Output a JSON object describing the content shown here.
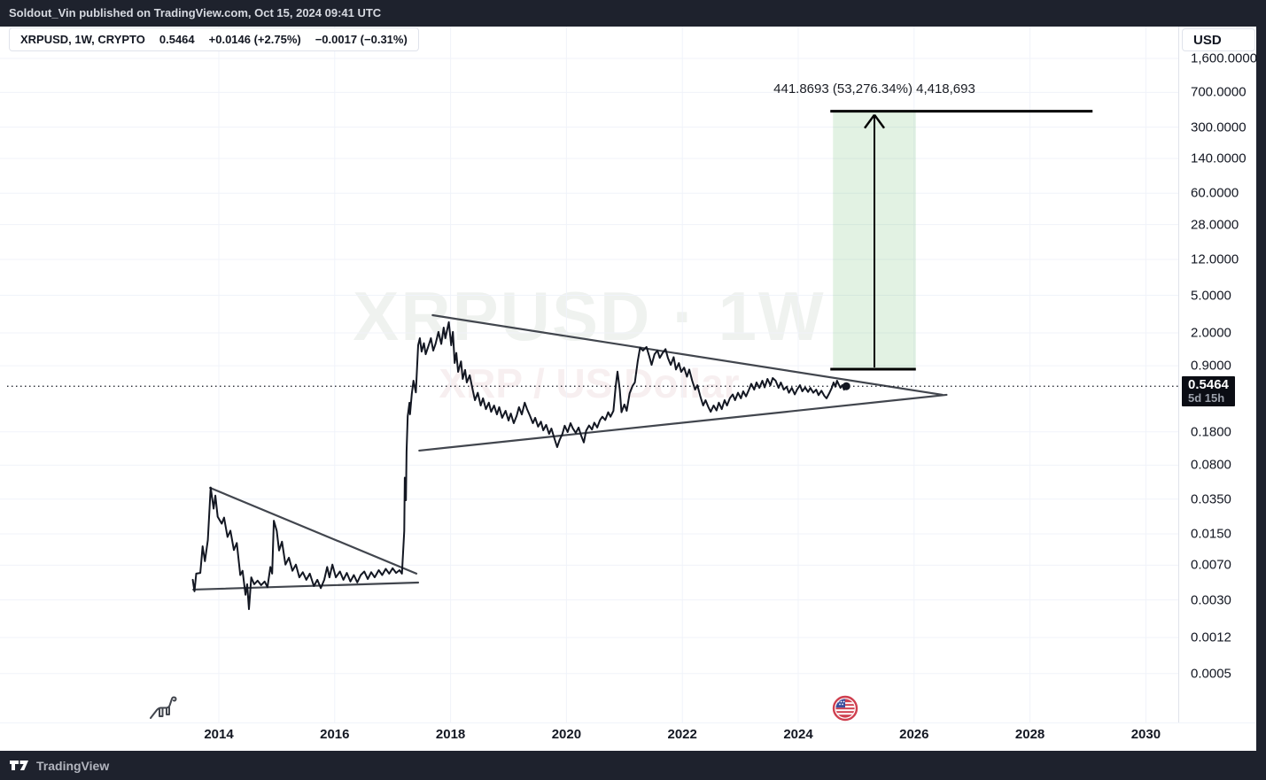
{
  "header": {
    "publish_line": "Soldout_Vin published on TradingView.com, Oct 15, 2024 09:41 UTC"
  },
  "legend": {
    "symbol": "XRPUSD, 1W, CRYPTO",
    "last": "0.5464",
    "change_1": "+0.0146 (+2.75%)",
    "change_2": "−0.0017 (−0.31%)"
  },
  "watermark": {
    "line1": "XRPUSD · 1W",
    "line2": "XRP / US Dollar"
  },
  "price_scale": {
    "currency_button": "USD",
    "price_badge": {
      "price": "0.5464",
      "countdown": "5d 15h"
    }
  },
  "footer": {
    "brand": "TradingView"
  },
  "icons": {
    "dinosaur": "dinosaur-icon",
    "us_flag": "us-flag-icon",
    "tv_logo": "tradingview-logo-icon",
    "up_arrow": "up-arrow-icon"
  },
  "colors": {
    "frame_dark": "#1e222d",
    "chart_bg": "#ffffff",
    "grid": "#f0f3fa",
    "series": "#131722",
    "trendline": "#42464e",
    "position_line": "#000000",
    "position_fill": "rgba(76,175,80,0.16)",
    "badge_bg": "#0b0d14",
    "flag_red": "#cf3f4f",
    "flag_blue": "#3b4f9e"
  },
  "chart_data": {
    "type": "line",
    "symbol": "XRPUSD",
    "timeframe": "1W",
    "exchange": "CRYPTO",
    "scale": "log",
    "current_price": 0.5464,
    "price_line": 0.5464,
    "x_axis": {
      "ticks": [
        2014,
        2016,
        2018,
        2020,
        2022,
        2024,
        2026,
        2028,
        2030
      ],
      "range": [
        2013.3,
        2031.5
      ]
    },
    "y_axis": {
      "unit": "USD",
      "ticks": [
        {
          "label": "1,600.0000",
          "value": 1600
        },
        {
          "label": "700.0000",
          "value": 700
        },
        {
          "label": "300.0000",
          "value": 300
        },
        {
          "label": "140.0000",
          "value": 140
        },
        {
          "label": "60.0000",
          "value": 60
        },
        {
          "label": "28.0000",
          "value": 28
        },
        {
          "label": "12.0000",
          "value": 12
        },
        {
          "label": "5.0000",
          "value": 5
        },
        {
          "label": "2.0000",
          "value": 2
        },
        {
          "label": "0.9000",
          "value": 0.9
        },
        {
          "label": "0.1800",
          "value": 0.18
        },
        {
          "label": "0.0800",
          "value": 0.08
        },
        {
          "label": "0.0350",
          "value": 0.035
        },
        {
          "label": "0.0150",
          "value": 0.015
        },
        {
          "label": "0.0070",
          "value": 0.007
        },
        {
          "label": "0.0030",
          "value": 0.003
        },
        {
          "label": "0.0012",
          "value": 0.0012
        },
        {
          "label": "0.0005",
          "value": 0.0005
        }
      ]
    },
    "trendlines": [
      {
        "name": "triangle-1-upper",
        "x1": 2013.85,
        "p1": 0.046,
        "x2": 2017.41,
        "p2": 0.0057
      },
      {
        "name": "triangle-1-lower",
        "x1": 2013.56,
        "p1": 0.00386,
        "x2": 2017.44,
        "p2": 0.00458
      },
      {
        "name": "triangle-2-upper",
        "x1": 2017.69,
        "p1": 3.08,
        "x2": 2026.49,
        "p2": 0.443
      },
      {
        "name": "triangle-2-lower",
        "x1": 2017.46,
        "p1": 0.114,
        "x2": 2026.56,
        "p2": 0.443
      }
    ],
    "long_position": {
      "x1": 2024.6,
      "x2": 2026.03,
      "entry": 0.8279,
      "target": 441.8693,
      "target_line_x2": 2029.08,
      "label": "441.8693 (53,276.34%) 4,418,693"
    },
    "series": [
      {
        "name": "XRPUSD weekly close",
        "points": [
          [
            2013.55,
            0.0049
          ],
          [
            2013.58,
            0.0037
          ],
          [
            2013.61,
            0.0057
          ],
          [
            2013.68,
            0.0058
          ],
          [
            2013.72,
            0.0111
          ],
          [
            2013.76,
            0.0077
          ],
          [
            2013.81,
            0.0129
          ],
          [
            2013.86,
            0.0464
          ],
          [
            2013.91,
            0.0277
          ],
          [
            2013.94,
            0.0381
          ],
          [
            2013.98,
            0.0228
          ],
          [
            2014.05,
            0.0192
          ],
          [
            2014.09,
            0.0223
          ],
          [
            2014.15,
            0.0139
          ],
          [
            2014.2,
            0.0162
          ],
          [
            2014.26,
            0.0101
          ],
          [
            2014.31,
            0.012
          ],
          [
            2014.37,
            0.0055
          ],
          [
            2014.41,
            0.0061
          ],
          [
            2014.46,
            0.0034
          ],
          [
            2014.49,
            0.0044
          ],
          [
            2014.52,
            0.0024
          ],
          [
            2014.56,
            0.0052
          ],
          [
            2014.61,
            0.0044
          ],
          [
            2014.67,
            0.0048
          ],
          [
            2014.73,
            0.0043
          ],
          [
            2014.79,
            0.0047
          ],
          [
            2014.84,
            0.0041
          ],
          [
            2014.89,
            0.0067
          ],
          [
            2014.92,
            0.0057
          ],
          [
            2014.95,
            0.0207
          ],
          [
            2015.0,
            0.0161
          ],
          [
            2015.04,
            0.01
          ],
          [
            2015.09,
            0.0124
          ],
          [
            2015.15,
            0.0071
          ],
          [
            2015.21,
            0.0084
          ],
          [
            2015.27,
            0.0061
          ],
          [
            2015.33,
            0.0071
          ],
          [
            2015.39,
            0.0052
          ],
          [
            2015.45,
            0.0059
          ],
          [
            2015.51,
            0.0049
          ],
          [
            2015.57,
            0.0057
          ],
          [
            2015.64,
            0.0042
          ],
          [
            2015.7,
            0.0049
          ],
          [
            2015.76,
            0.004
          ],
          [
            2015.82,
            0.0049
          ],
          [
            2015.87,
            0.0067
          ],
          [
            2015.91,
            0.0052
          ],
          [
            2015.96,
            0.0071
          ],
          [
            2016.02,
            0.0052
          ],
          [
            2016.09,
            0.006
          ],
          [
            2016.15,
            0.0049
          ],
          [
            2016.21,
            0.0058
          ],
          [
            2016.27,
            0.0047
          ],
          [
            2016.33,
            0.0055
          ],
          [
            2016.39,
            0.0046
          ],
          [
            2016.45,
            0.0055
          ],
          [
            2016.51,
            0.006
          ],
          [
            2016.57,
            0.005
          ],
          [
            2016.63,
            0.0059
          ],
          [
            2016.69,
            0.0052
          ],
          [
            2016.76,
            0.0062
          ],
          [
            2016.82,
            0.0055
          ],
          [
            2016.88,
            0.0064
          ],
          [
            2016.94,
            0.0057
          ],
          [
            2017.0,
            0.0065
          ],
          [
            2017.06,
            0.0058
          ],
          [
            2017.12,
            0.0062
          ],
          [
            2017.16,
            0.0057
          ],
          [
            2017.2,
            0.0161
          ],
          [
            2017.21,
            0.059
          ],
          [
            2017.23,
            0.034
          ],
          [
            2017.24,
            0.111
          ],
          [
            2017.26,
            0.263
          ],
          [
            2017.29,
            0.365
          ],
          [
            2017.3,
            0.276
          ],
          [
            2017.33,
            0.452
          ],
          [
            2017.36,
            0.625
          ],
          [
            2017.4,
            0.47
          ],
          [
            2017.44,
            1.48
          ],
          [
            2017.47,
            1.76
          ],
          [
            2017.5,
            1.27
          ],
          [
            2017.54,
            1.56
          ],
          [
            2017.57,
            1.19
          ],
          [
            2017.61,
            1.41
          ],
          [
            2017.66,
            1.76
          ],
          [
            2017.7,
            1.3
          ],
          [
            2017.74,
            1.53
          ],
          [
            2017.79,
            2.05
          ],
          [
            2017.84,
            1.53
          ],
          [
            2017.88,
            2.28
          ],
          [
            2017.91,
            1.76
          ],
          [
            2017.97,
            2.6
          ],
          [
            2018.01,
            1.48
          ],
          [
            2018.04,
            2.05
          ],
          [
            2018.07,
            0.962
          ],
          [
            2018.1,
            1.23
          ],
          [
            2018.13,
            0.775
          ],
          [
            2018.18,
            0.999
          ],
          [
            2018.21,
            0.653
          ],
          [
            2018.25,
            0.811
          ],
          [
            2018.28,
            0.598
          ],
          [
            2018.33,
            0.713
          ],
          [
            2018.38,
            0.503
          ],
          [
            2018.42,
            0.389
          ],
          [
            2018.47,
            0.466
          ],
          [
            2018.52,
            0.342
          ],
          [
            2018.56,
            0.407
          ],
          [
            2018.61,
            0.313
          ],
          [
            2018.66,
            0.366
          ],
          [
            2018.7,
            0.293
          ],
          [
            2018.75,
            0.342
          ],
          [
            2018.8,
            0.275
          ],
          [
            2018.84,
            0.328
          ],
          [
            2018.89,
            0.253
          ],
          [
            2018.95,
            0.3
          ],
          [
            2019.0,
            0.237
          ],
          [
            2019.04,
            0.281
          ],
          [
            2019.09,
            0.222
          ],
          [
            2019.14,
            0.266
          ],
          [
            2019.18,
            0.328
          ],
          [
            2019.23,
            0.275
          ],
          [
            2019.28,
            0.366
          ],
          [
            2019.32,
            0.313
          ],
          [
            2019.37,
            0.266
          ],
          [
            2019.42,
            0.222
          ],
          [
            2019.46,
            0.253
          ],
          [
            2019.51,
            0.204
          ],
          [
            2019.56,
            0.231
          ],
          [
            2019.6,
            0.187
          ],
          [
            2019.65,
            0.213
          ],
          [
            2019.7,
            0.171
          ],
          [
            2019.74,
            0.195
          ],
          [
            2019.79,
            0.154
          ],
          [
            2019.84,
            0.124
          ],
          [
            2019.88,
            0.147
          ],
          [
            2019.93,
            0.171
          ],
          [
            2019.97,
            0.209
          ],
          [
            2020.02,
            0.179
          ],
          [
            2020.07,
            0.222
          ],
          [
            2020.11,
            0.196
          ],
          [
            2020.16,
            0.175
          ],
          [
            2020.21,
            0.2
          ],
          [
            2020.25,
            0.166
          ],
          [
            2020.3,
            0.139
          ],
          [
            2020.34,
            0.185
          ],
          [
            2020.39,
            0.21
          ],
          [
            2020.44,
            0.19
          ],
          [
            2020.48,
            0.225
          ],
          [
            2020.53,
            0.2
          ],
          [
            2020.58,
            0.24
          ],
          [
            2020.62,
            0.26
          ],
          [
            2020.67,
            0.24
          ],
          [
            2020.72,
            0.29
          ],
          [
            2020.76,
            0.26
          ],
          [
            2020.81,
            0.3
          ],
          [
            2020.85,
            0.55
          ],
          [
            2020.88,
            0.78
          ],
          [
            2020.92,
            0.5
          ],
          [
            2020.95,
            0.29
          ],
          [
            2021.0,
            0.35
          ],
          [
            2021.04,
            0.3
          ],
          [
            2021.09,
            0.46
          ],
          [
            2021.14,
            0.55
          ],
          [
            2021.18,
            0.6
          ],
          [
            2021.23,
            1.0
          ],
          [
            2021.27,
            1.4
          ],
          [
            2021.32,
            1.3
          ],
          [
            2021.38,
            1.42
          ],
          [
            2021.43,
            1.13
          ],
          [
            2021.47,
            0.92
          ],
          [
            2021.52,
            1.19
          ],
          [
            2021.57,
            1.3
          ],
          [
            2021.61,
            1.09
          ],
          [
            2021.66,
            1.23
          ],
          [
            2021.71,
            1.35
          ],
          [
            2021.75,
            1.09
          ],
          [
            2021.8,
            0.92
          ],
          [
            2021.85,
            1.11
          ],
          [
            2021.89,
            0.82
          ],
          [
            2021.94,
            0.96
          ],
          [
            2021.98,
            0.775
          ],
          [
            2022.03,
            0.86
          ],
          [
            2022.08,
            0.688
          ],
          [
            2022.12,
            0.82
          ],
          [
            2022.17,
            0.625
          ],
          [
            2022.22,
            0.503
          ],
          [
            2022.26,
            0.56
          ],
          [
            2022.31,
            0.427
          ],
          [
            2022.36,
            0.342
          ],
          [
            2022.4,
            0.389
          ],
          [
            2022.45,
            0.328
          ],
          [
            2022.49,
            0.293
          ],
          [
            2022.54,
            0.342
          ],
          [
            2022.59,
            0.303
          ],
          [
            2022.63,
            0.366
          ],
          [
            2022.68,
            0.313
          ],
          [
            2022.73,
            0.389
          ],
          [
            2022.77,
            0.342
          ],
          [
            2022.82,
            0.407
          ],
          [
            2022.87,
            0.447
          ],
          [
            2022.91,
            0.389
          ],
          [
            2022.96,
            0.466
          ],
          [
            2023.01,
            0.407
          ],
          [
            2023.05,
            0.483
          ],
          [
            2023.1,
            0.427
          ],
          [
            2023.15,
            0.503
          ],
          [
            2023.19,
            0.58
          ],
          [
            2023.24,
            0.503
          ],
          [
            2023.28,
            0.598
          ],
          [
            2023.33,
            0.525
          ],
          [
            2023.38,
            0.625
          ],
          [
            2023.42,
            0.53
          ],
          [
            2023.47,
            0.653
          ],
          [
            2023.52,
            0.56
          ],
          [
            2023.56,
            0.667
          ],
          [
            2023.61,
            0.625
          ],
          [
            2023.66,
            0.525
          ],
          [
            2023.7,
            0.598
          ],
          [
            2023.75,
            0.503
          ],
          [
            2023.8,
            0.54
          ],
          [
            2023.84,
            0.466
          ],
          [
            2023.89,
            0.525
          ],
          [
            2023.94,
            0.447
          ],
          [
            2023.98,
            0.503
          ],
          [
            2024.03,
            0.56
          ],
          [
            2024.07,
            0.483
          ],
          [
            2024.12,
            0.53
          ],
          [
            2024.17,
            0.475
          ],
          [
            2024.21,
            0.525
          ],
          [
            2024.26,
            0.466
          ],
          [
            2024.31,
            0.503
          ],
          [
            2024.35,
            0.44
          ],
          [
            2024.4,
            0.49
          ],
          [
            2024.45,
            0.433
          ],
          [
            2024.49,
            0.407
          ],
          [
            2024.54,
            0.466
          ],
          [
            2024.58,
            0.525
          ],
          [
            2024.61,
            0.598
          ],
          [
            2024.64,
            0.54
          ],
          [
            2024.67,
            0.625
          ],
          [
            2024.7,
            0.57
          ],
          [
            2024.73,
            0.525
          ],
          [
            2024.76,
            0.56
          ],
          [
            2024.79,
            0.503
          ],
          [
            2024.81,
            0.525
          ],
          [
            2024.83,
            0.5464
          ]
        ]
      }
    ]
  }
}
